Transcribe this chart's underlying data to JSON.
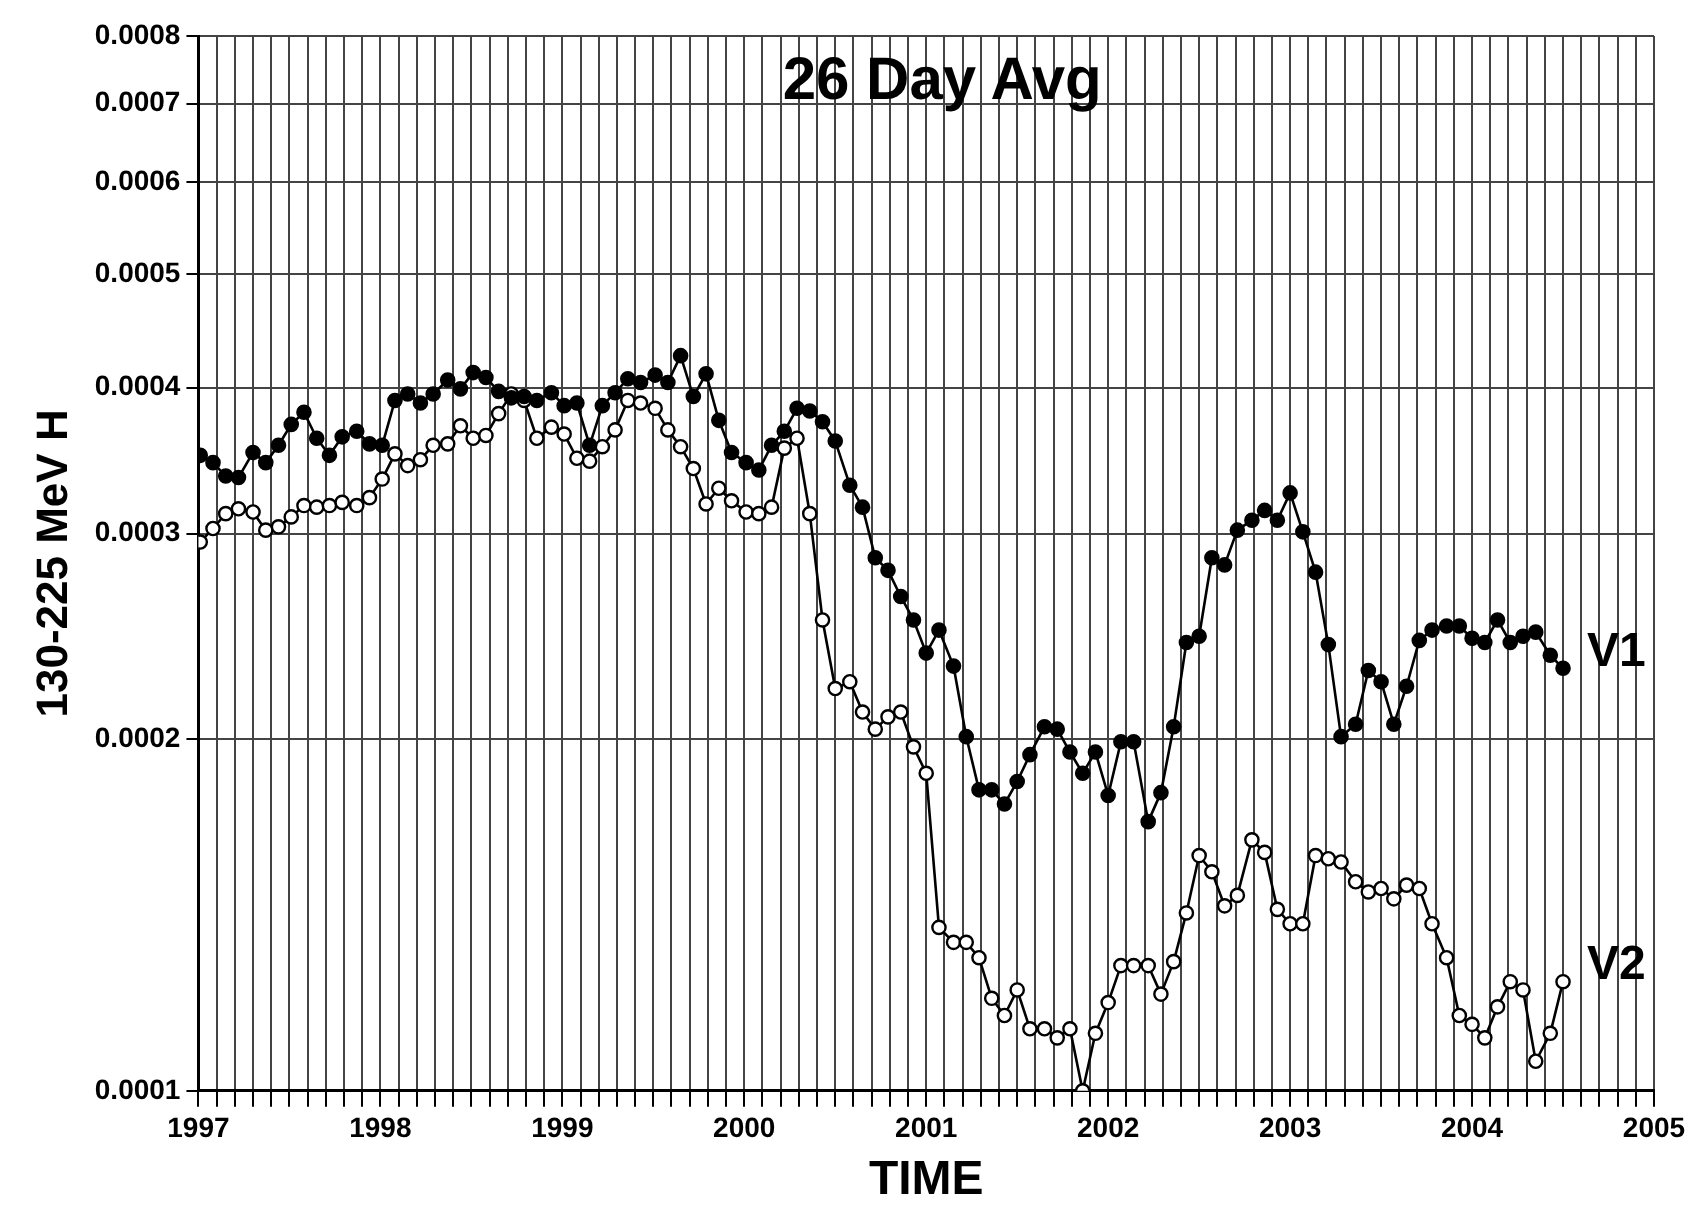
{
  "chart_data": {
    "type": "line",
    "title": "26 Day Avg",
    "xlabel": "TIME",
    "ylabel": "130-225 MeV H",
    "log": "y",
    "grid": true,
    "marker": "circle",
    "line_style": "solid",
    "xlim": [
      1997,
      2005
    ],
    "ylim": [
      0.0001,
      0.0008
    ],
    "yticks": [
      0.0001,
      0.0002,
      0.0003,
      0.0004,
      0.0005,
      0.0006,
      0.0007,
      0.0008
    ],
    "xticks": [
      1997,
      {
        "value": 1997.1,
        "label": null
      },
      {
        "value": 1997.2,
        "label": null
      },
      {
        "value": 1997.3,
        "label": null
      },
      {
        "value": 1997.4,
        "label": null
      },
      {
        "value": 1997.5,
        "label": null
      },
      {
        "value": 1997.6,
        "label": null
      },
      {
        "value": 1997.7,
        "label": null
      },
      {
        "value": 1997.8,
        "label": null
      },
      {
        "value": 1997.9,
        "label": null
      },
      1998,
      {
        "value": 1998.1,
        "label": null
      },
      {
        "value": 1998.2,
        "label": null
      },
      {
        "value": 1998.3,
        "label": null
      },
      {
        "value": 1998.4,
        "label": null
      },
      {
        "value": 1998.5,
        "label": null
      },
      {
        "value": 1998.6,
        "label": null
      },
      {
        "value": 1998.7,
        "label": null
      },
      {
        "value": 1998.8,
        "label": null
      },
      {
        "value": 1998.9,
        "label": null
      },
      1999,
      {
        "value": 1999.1,
        "label": null
      },
      {
        "value": 1999.2,
        "label": null
      },
      {
        "value": 1999.3,
        "label": null
      },
      {
        "value": 1999.4,
        "label": null
      },
      {
        "value": 1999.5,
        "label": null
      },
      {
        "value": 1999.6,
        "label": null
      },
      {
        "value": 1999.7,
        "label": null
      },
      {
        "value": 1999.8,
        "label": null
      },
      {
        "value": 1999.9,
        "label": null
      },
      2000,
      {
        "value": 2000.1,
        "label": null
      },
      {
        "value": 2000.2,
        "label": null
      },
      {
        "value": 2000.3,
        "label": null
      },
      {
        "value": 2000.4,
        "label": null
      },
      {
        "value": 2000.5,
        "label": null
      },
      {
        "value": 2000.6,
        "label": null
      },
      {
        "value": 2000.7,
        "label": null
      },
      {
        "value": 2000.8,
        "label": null
      },
      {
        "value": 2000.9,
        "label": null
      },
      2001,
      {
        "value": 2001.1,
        "label": null
      },
      {
        "value": 2001.2,
        "label": null
      },
      {
        "value": 2001.3,
        "label": null
      },
      {
        "value": 2001.4,
        "label": null
      },
      {
        "value": 2001.5,
        "label": null
      },
      {
        "value": 2001.6,
        "label": null
      },
      {
        "value": 2001.7,
        "label": null
      },
      {
        "value": 2001.8,
        "label": null
      },
      {
        "value": 2001.9,
        "label": null
      },
      2002,
      {
        "value": 2002.1,
        "label": null
      },
      {
        "value": 2002.2,
        "label": null
      },
      {
        "value": 2002.3,
        "label": null
      },
      {
        "value": 2002.4,
        "label": null
      },
      {
        "value": 2002.5,
        "label": null
      },
      {
        "value": 2002.6,
        "label": null
      },
      {
        "value": 2002.7,
        "label": null
      },
      {
        "value": 2002.8,
        "label": null
      },
      {
        "value": 2002.9,
        "label": null
      },
      2003,
      {
        "value": 2003.1,
        "label": null
      },
      {
        "value": 2003.2,
        "label": null
      },
      {
        "value": 2003.3,
        "label": null
      },
      {
        "value": 2003.4,
        "label": null
      },
      {
        "value": 2003.5,
        "label": null
      },
      {
        "value": 2003.6,
        "label": null
      },
      {
        "value": 2003.7,
        "label": null
      },
      {
        "value": 2003.8,
        "label": null
      },
      {
        "value": 2003.9,
        "label": null
      },
      2004,
      {
        "value": 2004.1,
        "label": null
      },
      {
        "value": 2004.2,
        "label": null
      },
      {
        "value": 2004.3,
        "label": null
      },
      {
        "value": 2004.4,
        "label": null
      },
      {
        "value": 2004.5,
        "label": null
      },
      {
        "value": 2004.6,
        "label": null
      },
      {
        "value": 2004.7,
        "label": null
      },
      {
        "value": 2004.8,
        "label": null
      },
      {
        "value": 2004.9,
        "label": null
      },
      2005
    ],
    "x": [
      1997.01,
      1997.08,
      1997.15,
      1997.22,
      1997.3,
      1997.37,
      1997.44,
      1997.51,
      1997.58,
      1997.65,
      1997.72,
      1997.79,
      1997.87,
      1997.94,
      1998.01,
      1998.08,
      1998.15,
      1998.22,
      1998.29,
      1998.37,
      1998.44,
      1998.51,
      1998.58,
      1998.65,
      1998.72,
      1998.79,
      1998.86,
      1998.94,
      1999.01,
      1999.08,
      1999.15,
      1999.22,
      1999.29,
      1999.36,
      1999.43,
      1999.51,
      1999.58,
      1999.65,
      1999.72,
      1999.79,
      1999.86,
      1999.93,
      2000.01,
      2000.08,
      2000.15,
      2000.22,
      2000.29,
      2000.36,
      2000.43,
      2000.5,
      2000.58,
      2000.65,
      2000.72,
      2000.79,
      2000.86,
      2000.93,
      2001.0,
      2001.07,
      2001.15,
      2001.22,
      2001.29,
      2001.36,
      2001.43,
      2001.5,
      2001.57,
      2001.65,
      2001.72,
      2001.79,
      2001.86,
      2001.93,
      2002.0,
      2002.07,
      2002.14,
      2002.22,
      2002.29,
      2002.36,
      2002.43,
      2002.5,
      2002.57,
      2002.64,
      2002.71,
      2002.79,
      2002.86,
      2002.93,
      2003.0,
      2003.07,
      2003.14,
      2003.21,
      2003.28,
      2003.36,
      2003.43,
      2003.5,
      2003.57,
      2003.64,
      2003.71,
      2003.78,
      2003.86,
      2003.93,
      2004.0,
      2004.07,
      2004.14,
      2004.21,
      2004.28,
      2004.35,
      2004.43,
      2004.5
    ],
    "series": [
      {
        "name": "V1",
        "color": "#000000",
        "values": [
          0.00035,
          0.000345,
          0.000336,
          0.000335,
          0.000352,
          0.000345,
          0.000357,
          0.000372,
          0.000381,
          0.000362,
          0.00035,
          0.000363,
          0.000367,
          0.000358,
          0.000357,
          0.00039,
          0.000395,
          0.000388,
          0.000395,
          0.000406,
          0.000399,
          0.000412,
          0.000408,
          0.000397,
          0.000392,
          0.000393,
          0.00039,
          0.000396,
          0.000386,
          0.000388,
          0.000357,
          0.000386,
          0.000396,
          0.000407,
          0.000404,
          0.00041,
          0.000404,
          0.000426,
          0.000393,
          0.000411,
          0.000375,
          0.000352,
          0.000345,
          0.00034,
          0.000357,
          0.000367,
          0.000384,
          0.000382,
          0.000374,
          0.00036,
          0.00033,
          0.000316,
          0.000286,
          0.000279,
          0.000265,
          0.000253,
          0.000237,
          0.000248,
          0.000231,
          0.000201,
          0.000181,
          0.000181,
          0.000176,
          0.000184,
          0.000194,
          0.000205,
          0.000204,
          0.000195,
          0.000187,
          0.000195,
          0.000179,
          0.000199,
          0.000199,
          0.00017,
          0.00018,
          0.000205,
          0.000242,
          0.000245,
          0.000286,
          0.000282,
          0.000302,
          0.000308,
          0.000314,
          0.000308,
          0.000325,
          0.000301,
          0.000278,
          0.000241,
          0.000201,
          0.000206,
          0.000229,
          0.000224,
          0.000206,
          0.000222,
          0.000243,
          0.000248,
          0.00025,
          0.00025,
          0.000244,
          0.000242,
          0.000253,
          0.000242,
          0.000245,
          0.000247,
          0.000236,
          0.00023
        ]
      },
      {
        "name": "V2",
        "color": "#000000",
        "values": [
          0.000295,
          0.000303,
          0.000312,
          0.000315,
          0.000313,
          0.000302,
          0.000304,
          0.00031,
          0.000317,
          0.000316,
          0.000317,
          0.000319,
          0.000317,
          0.000322,
          0.000334,
          0.000351,
          0.000343,
          0.000347,
          0.000357,
          0.000358,
          0.000371,
          0.000362,
          0.000364,
          0.00038,
          0.000395,
          0.00039,
          0.000362,
          0.00037,
          0.000365,
          0.000348,
          0.000346,
          0.000356,
          0.000368,
          0.00039,
          0.000388,
          0.000384,
          0.000368,
          0.000356,
          0.000341,
          0.000318,
          0.000328,
          0.00032,
          0.000313,
          0.000312,
          0.000316,
          0.000355,
          0.000362,
          0.000312,
          0.000253,
          0.000221,
          0.000224,
          0.000211,
          0.000204,
          0.000209,
          0.000211,
          0.000197,
          0.000187,
          0.000138,
          0.000134,
          0.000134,
          0.00013,
          0.00012,
          0.000116,
          0.000122,
          0.000113,
          0.000113,
          0.000111,
          0.000113,
          0.0001,
          0.000112,
          0.000119,
          0.000128,
          0.000128,
          0.000128,
          0.000121,
          0.000129,
          0.000142,
          0.000159,
          0.000154,
          0.000144,
          0.000147,
          0.000164,
          0.00016,
          0.000143,
          0.000139,
          0.000139,
          0.000159,
          0.000158,
          0.000157,
          0.000151,
          0.000148,
          0.000149,
          0.000146,
          0.00015,
          0.000149,
          0.000139,
          0.00013,
          0.000116,
          0.000114,
          0.000111,
          0.000118,
          0.000124,
          0.000122,
          0.000106,
          0.000112,
          0.000124
        ]
      }
    ]
  }
}
